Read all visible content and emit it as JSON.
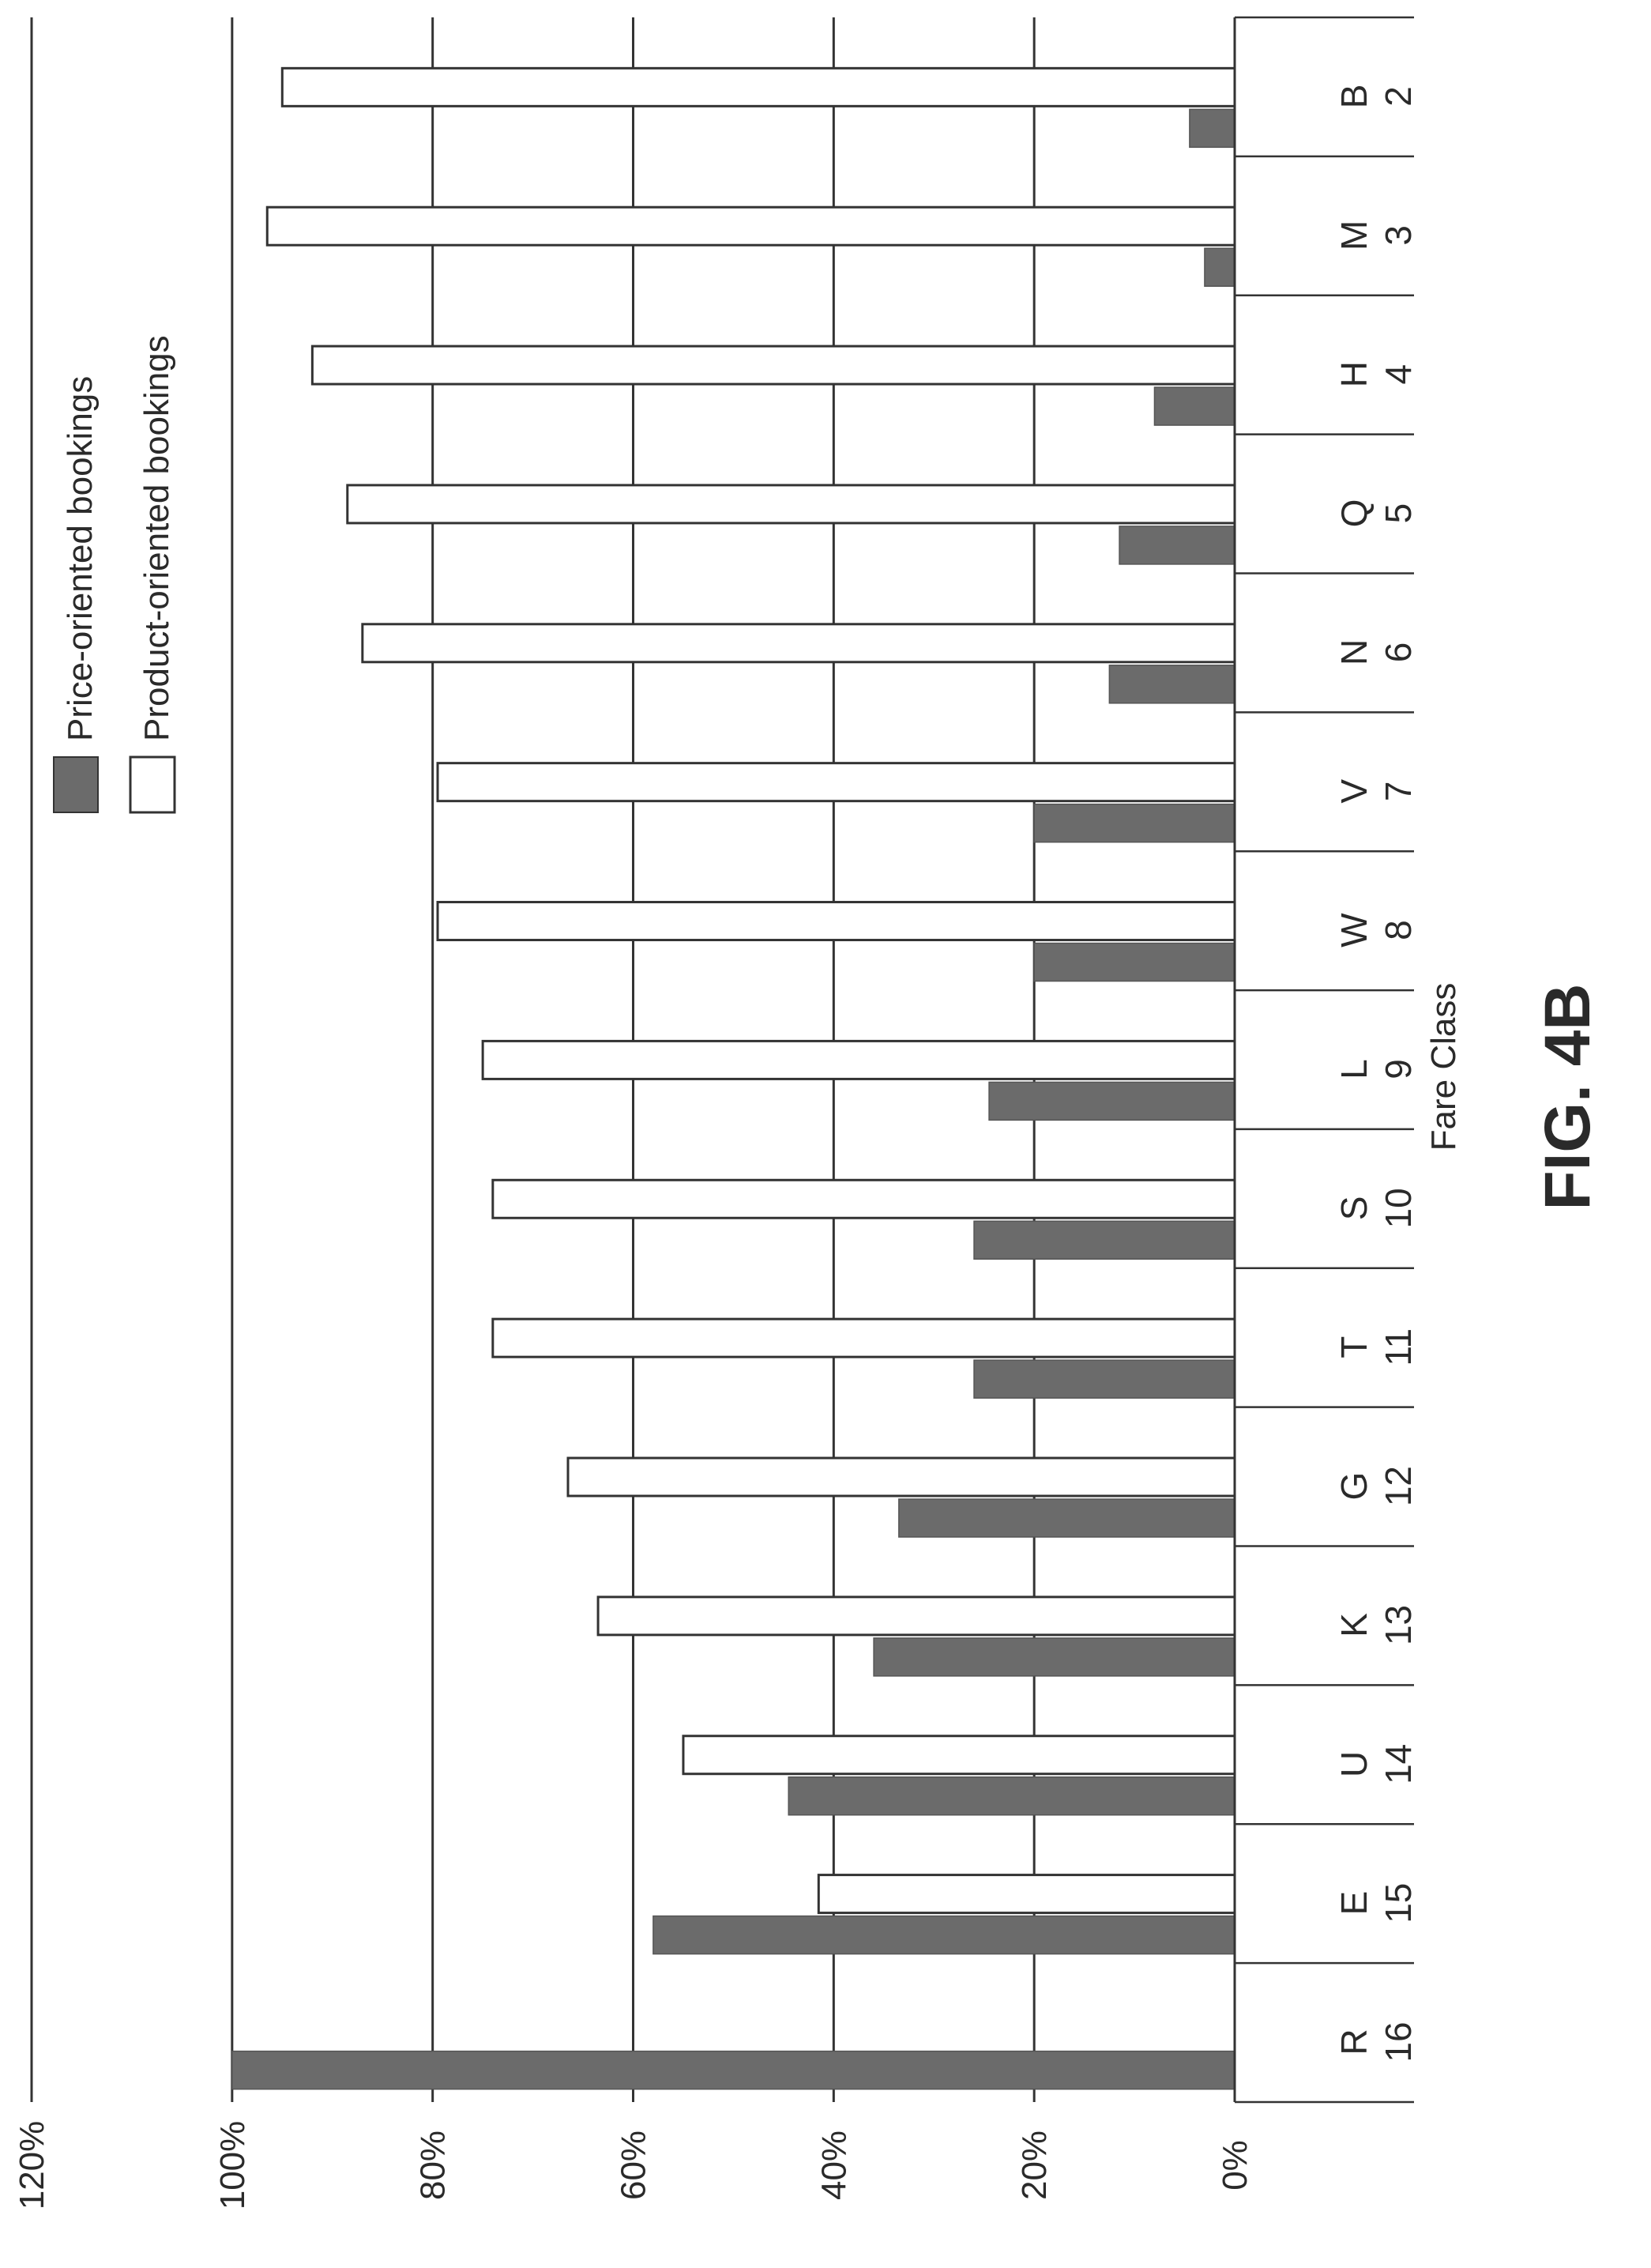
{
  "figure_label": "FIG. 4B",
  "chart_data": {
    "type": "bar",
    "orientation": "horizontal (rotated page)",
    "xlabel": "Fare Class",
    "ylabel": "",
    "ylim": [
      0,
      120
    ],
    "y_ticks": [
      "0%",
      "20%",
      "40%",
      "60%",
      "80%",
      "100%",
      "120%"
    ],
    "grid": true,
    "legend_placement": "top-right",
    "categories": [
      {
        "letter": "B",
        "number": "2"
      },
      {
        "letter": "M",
        "number": "3"
      },
      {
        "letter": "H",
        "number": "4"
      },
      {
        "letter": "Q",
        "number": "5"
      },
      {
        "letter": "N",
        "number": "6"
      },
      {
        "letter": "V",
        "number": "7"
      },
      {
        "letter": "W",
        "number": "8"
      },
      {
        "letter": "L",
        "number": "9"
      },
      {
        "letter": "S",
        "number": "10"
      },
      {
        "letter": "T",
        "number": "11"
      },
      {
        "letter": "G",
        "number": "12"
      },
      {
        "letter": "K",
        "number": "13"
      },
      {
        "letter": "U",
        "number": "14"
      },
      {
        "letter": "E",
        "number": "15"
      },
      {
        "letter": "R",
        "number": "16"
      }
    ],
    "series": [
      {
        "name": "Price-oriented bookings",
        "color": "#6b6b6b",
        "values": [
          4.5,
          3,
          8,
          11.5,
          12.5,
          20,
          20,
          24.5,
          26,
          26,
          33.5,
          36,
          44.5,
          58,
          100
        ]
      },
      {
        "name": "Product-oriented bookings",
        "color": "#ffffff",
        "values": [
          95,
          96.5,
          92,
          88.5,
          87,
          79.5,
          79.5,
          75,
          74,
          74,
          66.5,
          63.5,
          55,
          41.5,
          null
        ]
      }
    ]
  }
}
